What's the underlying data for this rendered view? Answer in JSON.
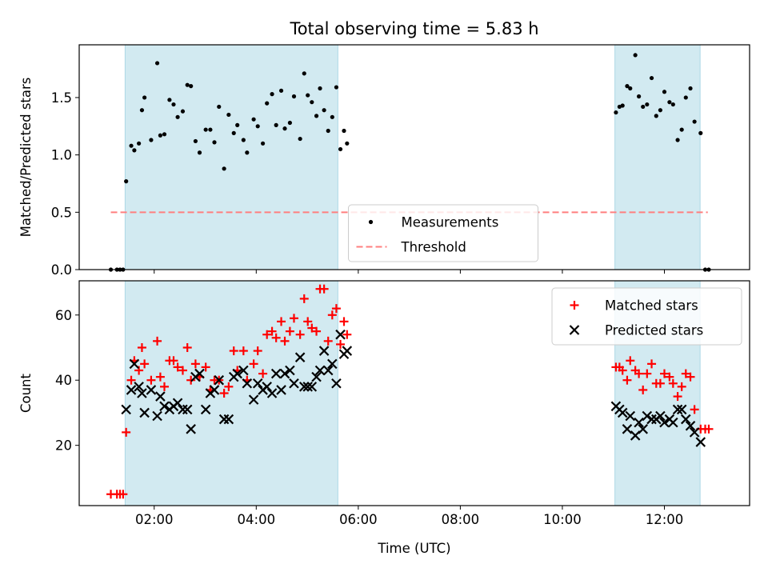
{
  "chart_data": {
    "title": "Total observing time = 5.83 h",
    "xlabel": "Time (UTC)",
    "x_unit": "hours UTC",
    "xlim": [
      0.53,
      13.67
    ],
    "x_ticks": [
      {
        "value": 2,
        "label": "02:00"
      },
      {
        "value": 4,
        "label": "04:00"
      },
      {
        "value": 6,
        "label": "06:00"
      },
      {
        "value": 8,
        "label": "08:00"
      },
      {
        "value": 10,
        "label": "10:00"
      },
      {
        "value": 12,
        "label": "12:00"
      }
    ],
    "shaded_intervals": [
      {
        "start": 1.43,
        "end": 5.6
      },
      {
        "start": 11.03,
        "end": 12.7
      }
    ],
    "shade_color": "#add8e6",
    "panels": [
      {
        "type": "scatter",
        "ylabel": "Matched/Predicted stars",
        "ylim": [
          0,
          1.96
        ],
        "yticks": [
          "0.0",
          "0.5",
          "1.0",
          "1.5"
        ],
        "ytick_values": [
          0,
          0.5,
          1.0,
          1.5
        ],
        "legend_position": "lower-center",
        "threshold": {
          "name": "Threshold",
          "value": 0.5,
          "x_range": [
            1.15,
            12.85
          ],
          "color": "#ff7f7f"
        },
        "series": [
          {
            "name": "Measurements",
            "marker": "dot",
            "color": "#000000",
            "points": [
              [
                1.15,
                0.0
              ],
              [
                1.27,
                0.0
              ],
              [
                1.33,
                0.0
              ],
              [
                1.39,
                0.0
              ],
              [
                1.45,
                0.77
              ],
              [
                1.55,
                1.08
              ],
              [
                1.61,
                1.04
              ],
              [
                1.7,
                1.1
              ],
              [
                1.76,
                1.39
              ],
              [
                1.81,
                1.5
              ],
              [
                1.94,
                1.13
              ],
              [
                2.06,
                1.8
              ],
              [
                2.12,
                1.17
              ],
              [
                2.2,
                1.18
              ],
              [
                2.3,
                1.48
              ],
              [
                2.38,
                1.44
              ],
              [
                2.46,
                1.33
              ],
              [
                2.56,
                1.38
              ],
              [
                2.65,
                1.61
              ],
              [
                2.72,
                1.6
              ],
              [
                2.81,
                1.12
              ],
              [
                2.89,
                1.02
              ],
              [
                3.01,
                1.22
              ],
              [
                3.1,
                1.22
              ],
              [
                3.18,
                1.11
              ],
              [
                3.27,
                1.42
              ],
              [
                3.37,
                0.88
              ],
              [
                3.46,
                1.35
              ],
              [
                3.56,
                1.19
              ],
              [
                3.63,
                1.26
              ],
              [
                3.75,
                1.13
              ],
              [
                3.82,
                1.02
              ],
              [
                3.95,
                1.31
              ],
              [
                4.03,
                1.25
              ],
              [
                4.13,
                1.1
              ],
              [
                4.21,
                1.45
              ],
              [
                4.31,
                1.53
              ],
              [
                4.39,
                1.26
              ],
              [
                4.49,
                1.56
              ],
              [
                4.56,
                1.23
              ],
              [
                4.66,
                1.28
              ],
              [
                4.74,
                1.51
              ],
              [
                4.86,
                1.14
              ],
              [
                4.94,
                1.71
              ],
              [
                5.01,
                1.52
              ],
              [
                5.09,
                1.46
              ],
              [
                5.18,
                1.34
              ],
              [
                5.25,
                1.58
              ],
              [
                5.33,
                1.39
              ],
              [
                5.41,
                1.21
              ],
              [
                5.49,
                1.33
              ],
              [
                5.57,
                1.59
              ],
              [
                5.65,
                1.05
              ],
              [
                5.72,
                1.21
              ],
              [
                5.78,
                1.1
              ],
              [
                11.05,
                1.37
              ],
              [
                11.12,
                1.42
              ],
              [
                11.18,
                1.43
              ],
              [
                11.27,
                1.6
              ],
              [
                11.33,
                1.58
              ],
              [
                11.43,
                1.87
              ],
              [
                11.5,
                1.51
              ],
              [
                11.58,
                1.42
              ],
              [
                11.66,
                1.44
              ],
              [
                11.75,
                1.67
              ],
              [
                11.84,
                1.34
              ],
              [
                11.92,
                1.39
              ],
              [
                12.0,
                1.55
              ],
              [
                12.1,
                1.46
              ],
              [
                12.17,
                1.44
              ],
              [
                12.26,
                1.13
              ],
              [
                12.34,
                1.22
              ],
              [
                12.42,
                1.5
              ],
              [
                12.51,
                1.58
              ],
              [
                12.59,
                1.29
              ],
              [
                12.71,
                1.19
              ],
              [
                12.8,
                0.0
              ],
              [
                12.87,
                0.0
              ]
            ]
          }
        ]
      },
      {
        "type": "scatter",
        "ylabel": "Count",
        "ylim": [
          1.5,
          70.5
        ],
        "yticks": [
          "20",
          "40",
          "60"
        ],
        "ytick_values": [
          20,
          40,
          60
        ],
        "legend_position": "upper-right",
        "series": [
          {
            "name": "Matched stars",
            "marker": "plus",
            "color": "#ff0000",
            "points": [
              [
                1.15,
                5
              ],
              [
                1.27,
                5
              ],
              [
                1.33,
                5
              ],
              [
                1.39,
                5
              ],
              [
                1.45,
                24
              ],
              [
                1.55,
                40
              ],
              [
                1.61,
                46
              ],
              [
                1.7,
                43
              ],
              [
                1.76,
                50
              ],
              [
                1.81,
                45
              ],
              [
                1.94,
                40
              ],
              [
                2.06,
                52
              ],
              [
                2.12,
                41
              ],
              [
                2.2,
                38
              ],
              [
                2.3,
                46
              ],
              [
                2.38,
                46
              ],
              [
                2.46,
                44
              ],
              [
                2.56,
                43
              ],
              [
                2.65,
                50
              ],
              [
                2.72,
                40
              ],
              [
                2.81,
                45
              ],
              [
                2.89,
                41
              ],
              [
                3.01,
                44
              ],
              [
                3.1,
                37
              ],
              [
                3.18,
                40
              ],
              [
                3.27,
                40
              ],
              [
                3.37,
                36
              ],
              [
                3.46,
                38
              ],
              [
                3.56,
                49
              ],
              [
                3.63,
                43
              ],
              [
                3.75,
                49
              ],
              [
                3.82,
                40
              ],
              [
                3.95,
                45
              ],
              [
                4.03,
                49
              ],
              [
                4.13,
                42
              ],
              [
                4.21,
                54
              ],
              [
                4.31,
                55
              ],
              [
                4.39,
                53
              ],
              [
                4.49,
                58
              ],
              [
                4.56,
                52
              ],
              [
                4.66,
                55
              ],
              [
                4.74,
                59
              ],
              [
                4.86,
                54
              ],
              [
                4.94,
                65
              ],
              [
                5.01,
                58
              ],
              [
                5.09,
                56
              ],
              [
                5.18,
                55
              ],
              [
                5.25,
                68
              ],
              [
                5.33,
                68
              ],
              [
                5.41,
                52
              ],
              [
                5.49,
                60
              ],
              [
                5.57,
                62
              ],
              [
                5.65,
                51
              ],
              [
                5.72,
                58
              ],
              [
                5.78,
                54
              ],
              [
                11.05,
                44
              ],
              [
                11.12,
                44
              ],
              [
                11.18,
                43
              ],
              [
                11.27,
                40
              ],
              [
                11.33,
                46
              ],
              [
                11.43,
                43
              ],
              [
                11.5,
                42
              ],
              [
                11.58,
                37
              ],
              [
                11.66,
                42
              ],
              [
                11.75,
                45
              ],
              [
                11.84,
                39
              ],
              [
                11.92,
                39
              ],
              [
                12.0,
                42
              ],
              [
                12.1,
                41
              ],
              [
                12.17,
                39
              ],
              [
                12.26,
                35
              ],
              [
                12.34,
                38
              ],
              [
                12.42,
                42
              ],
              [
                12.51,
                41
              ],
              [
                12.59,
                31
              ],
              [
                12.71,
                25
              ],
              [
                12.8,
                25
              ],
              [
                12.87,
                25
              ]
            ]
          },
          {
            "name": "Predicted stars",
            "marker": "x",
            "color": "#000000",
            "points": [
              [
                1.45,
                31
              ],
              [
                1.55,
                37
              ],
              [
                1.61,
                45
              ],
              [
                1.7,
                38
              ],
              [
                1.76,
                36
              ],
              [
                1.81,
                30
              ],
              [
                1.94,
                37
              ],
              [
                2.06,
                29
              ],
              [
                2.12,
                35
              ],
              [
                2.2,
                32
              ],
              [
                2.3,
                31
              ],
              [
                2.38,
                32
              ],
              [
                2.46,
                33
              ],
              [
                2.56,
                31
              ],
              [
                2.65,
                31
              ],
              [
                2.72,
                25
              ],
              [
                2.81,
                41
              ],
              [
                2.89,
                42
              ],
              [
                3.01,
                31
              ],
              [
                3.1,
                36
              ],
              [
                3.18,
                37
              ],
              [
                3.27,
                40
              ],
              [
                3.37,
                28
              ],
              [
                3.46,
                28
              ],
              [
                3.56,
                41
              ],
              [
                3.63,
                42
              ],
              [
                3.75,
                43
              ],
              [
                3.82,
                39
              ],
              [
                3.95,
                34
              ],
              [
                4.03,
                39
              ],
              [
                4.13,
                37
              ],
              [
                4.21,
                38
              ],
              [
                4.31,
                36
              ],
              [
                4.39,
                42
              ],
              [
                4.49,
                37
              ],
              [
                4.56,
                42
              ],
              [
                4.66,
                43
              ],
              [
                4.74,
                39
              ],
              [
                4.86,
                47
              ],
              [
                4.94,
                38
              ],
              [
                5.01,
                38
              ],
              [
                5.09,
                38
              ],
              [
                5.18,
                41
              ],
              [
                5.25,
                43
              ],
              [
                5.33,
                49
              ],
              [
                5.41,
                43
              ],
              [
                5.49,
                45
              ],
              [
                5.57,
                39
              ],
              [
                5.65,
                54
              ],
              [
                5.72,
                48
              ],
              [
                5.78,
                49
              ],
              [
                11.05,
                32
              ],
              [
                11.12,
                31
              ],
              [
                11.18,
                30
              ],
              [
                11.27,
                25
              ],
              [
                11.33,
                29
              ],
              [
                11.43,
                23
              ],
              [
                11.5,
                27
              ],
              [
                11.58,
                25
              ],
              [
                11.66,
                29
              ],
              [
                11.75,
                28
              ],
              [
                11.84,
                28
              ],
              [
                11.92,
                29
              ],
              [
                12.0,
                27
              ],
              [
                12.1,
                28
              ],
              [
                12.17,
                27
              ],
              [
                12.26,
                31
              ],
              [
                12.34,
                31
              ],
              [
                12.42,
                28
              ],
              [
                12.51,
                26
              ],
              [
                12.59,
                24
              ],
              [
                12.71,
                21
              ]
            ]
          }
        ]
      }
    ]
  }
}
